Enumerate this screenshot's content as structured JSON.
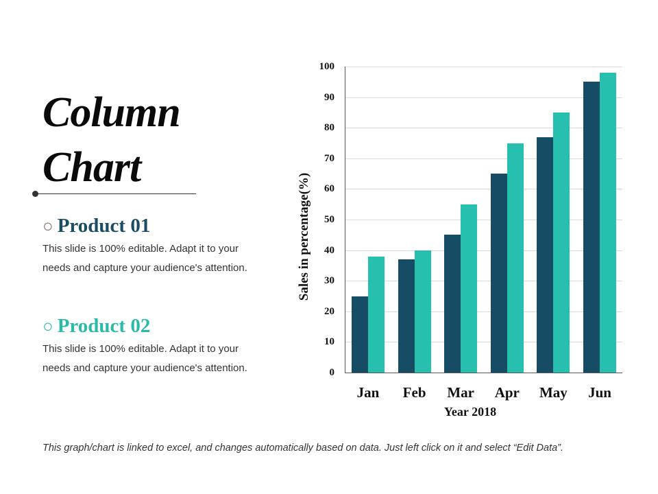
{
  "title": {
    "line1": "Column",
    "line2": "Chart"
  },
  "products": [
    {
      "bullet": "○",
      "name": "Product 01",
      "desc_line1": "This slide is 100% editable. Adapt it to your",
      "desc_line2": "needs and capture your audience's attention.",
      "color": "#1a4d63"
    },
    {
      "bullet": "○",
      "name": "Product 02",
      "desc_line1": "This slide is 100% editable. Adapt it to your",
      "desc_line2": "needs and capture your audience's attention.",
      "color": "#2bbaa8"
    }
  ],
  "footnote": "This graph/chart is linked to excel, and changes automatically based on data. Just left click on it and select “Edit Data”.",
  "chart_data": {
    "type": "bar",
    "title": "",
    "categories": [
      "Jan",
      "Feb",
      "Mar",
      "Apr",
      "May",
      "Jun"
    ],
    "series": [
      {
        "name": "Product 01",
        "color": "#174d64",
        "values": [
          25,
          37,
          45,
          65,
          77,
          95
        ]
      },
      {
        "name": "Product 02",
        "color": "#27bfae",
        "values": [
          38,
          40,
          55,
          75,
          85,
          98
        ]
      }
    ],
    "xlabel": "Year 2018",
    "ylabel": "Sales in percentage(%)",
    "ylim": [
      0,
      100
    ],
    "yticks": [
      0,
      10,
      20,
      30,
      40,
      50,
      60,
      70,
      80,
      90,
      100
    ],
    "grid": true,
    "legend": "none"
  }
}
